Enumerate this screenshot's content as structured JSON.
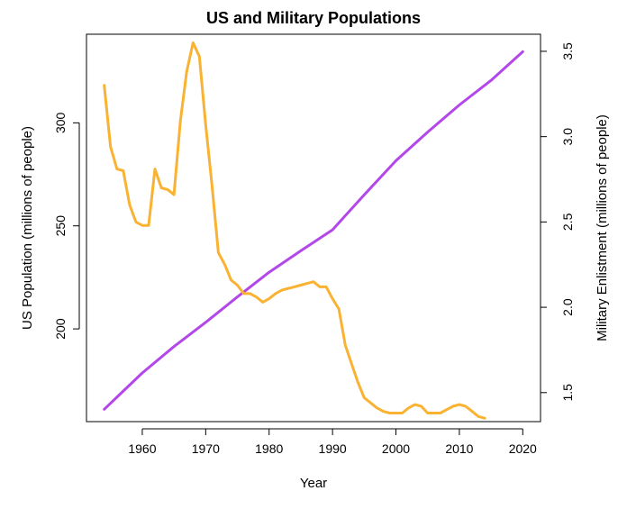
{
  "chart_data": {
    "type": "line",
    "title": "US and Military Populations",
    "xlabel": "Year",
    "ylabel_left": "US Population (millions of people)",
    "ylabel_right": "Military Enlistment (millions of people)",
    "xlim": [
      1951.2,
      2022.8
    ],
    "ylim_left": [
      155,
      343
    ],
    "ylim_right": [
      1.33,
      3.6
    ],
    "x_ticks": [
      1960,
      1970,
      1980,
      1990,
      2000,
      2010,
      2020
    ],
    "y_ticks_left": [
      200,
      250,
      300
    ],
    "y_ticks_right": [
      1.5,
      2.0,
      2.5,
      3.0,
      3.5
    ],
    "grid": false,
    "series": [
      {
        "axis": "left",
        "color": "#b347ea",
        "x": [
          1954,
          1960,
          1965,
          1970,
          1975,
          1980,
          1985,
          1990,
          1995,
          2000,
          2005,
          2010,
          2015,
          2020
        ],
        "values": [
          161,
          178.6,
          191.4,
          203.2,
          215.5,
          227.5,
          237.9,
          248.1,
          265.1,
          281.6,
          295.5,
          308.7,
          320.6,
          334.5
        ]
      },
      {
        "axis": "right",
        "color": "#f9b232",
        "x": [
          1954,
          1955,
          1956,
          1957,
          1958,
          1959,
          1960,
          1961,
          1962,
          1963,
          1964,
          1965,
          1966,
          1967,
          1968,
          1969,
          1970,
          1971,
          1972,
          1973,
          1974,
          1975,
          1976,
          1977,
          1978,
          1979,
          1980,
          1981,
          1982,
          1983,
          1984,
          1985,
          1986,
          1987,
          1988,
          1989,
          1990,
          1991,
          1992,
          1993,
          1994,
          1995,
          1996,
          1997,
          1998,
          1999,
          2000,
          2001,
          2002,
          2003,
          2004,
          2005,
          2006,
          2007,
          2008,
          2009,
          2010,
          2011,
          2012,
          2013,
          2014
        ],
        "values": [
          3.3,
          2.94,
          2.81,
          2.8,
          2.6,
          2.5,
          2.48,
          2.48,
          2.81,
          2.7,
          2.69,
          2.66,
          3.09,
          3.38,
          3.55,
          3.47,
          3.07,
          2.71,
          2.32,
          2.25,
          2.16,
          2.13,
          2.08,
          2.08,
          2.06,
          2.03,
          2.05,
          2.08,
          2.1,
          2.11,
          2.12,
          2.13,
          2.14,
          2.15,
          2.12,
          2.12,
          2.05,
          1.99,
          1.78,
          1.67,
          1.56,
          1.47,
          1.44,
          1.41,
          1.39,
          1.38,
          1.38,
          1.38,
          1.41,
          1.43,
          1.42,
          1.38,
          1.38,
          1.38,
          1.4,
          1.42,
          1.43,
          1.42,
          1.39,
          1.36,
          1.35
        ]
      }
    ]
  }
}
